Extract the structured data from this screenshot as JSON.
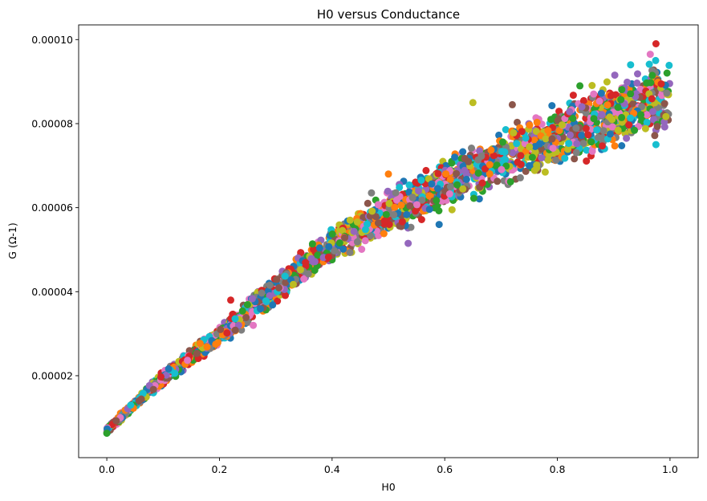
{
  "chart_data": {
    "type": "scatter",
    "title": "H0 versus Conductance",
    "xlabel": "H0",
    "ylabel": "G (Ω-1)",
    "xlim": [
      -0.05,
      1.05
    ],
    "ylim": [
      5e-07,
      0.0001035
    ],
    "x_ticks": [
      0.0,
      0.2,
      0.4,
      0.6,
      0.8,
      1.0
    ],
    "x_tick_labels": [
      "0.0",
      "0.2",
      "0.4",
      "0.6",
      "0.8",
      "1.0"
    ],
    "y_ticks": [
      2e-05,
      4e-05,
      6e-05,
      8e-05,
      0.0001
    ],
    "y_tick_labels": [
      "0.00002",
      "0.00004",
      "0.00006",
      "0.00008",
      "0.00010"
    ],
    "grid": false,
    "legend": "none",
    "series_colors": [
      "#1f77b4",
      "#ff7f0e",
      "#2ca02c",
      "#d62728",
      "#9467bd",
      "#8c564b",
      "#e377c2",
      "#7f7f7f",
      "#bcbd22",
      "#17becf"
    ],
    "trend": {
      "description_points": [
        {
          "x": 0.0,
          "y": 7e-06
        },
        {
          "x": 0.1,
          "y": 1.95e-05
        },
        {
          "x": 0.2,
          "y": 2.95e-05
        },
        {
          "x": 0.3,
          "y": 4.05e-05
        },
        {
          "x": 0.4,
          "y": 5.1e-05
        },
        {
          "x": 0.5,
          "y": 5.85e-05
        },
        {
          "x": 0.6,
          "y": 6.55e-05
        },
        {
          "x": 0.7,
          "y": 7.15e-05
        },
        {
          "x": 0.8,
          "y": 7.75e-05
        },
        {
          "x": 0.9,
          "y": 8.25e-05
        },
        {
          "x": 1.0,
          "y": 8.65e-05
        }
      ],
      "spread_at_x0": 1e-06,
      "spread_at_x1": 1.2e-05
    },
    "sample_points": [
      {
        "x": 0.975,
        "y": 9.9e-05
      },
      {
        "x": 0.965,
        "y": 9.65e-05
      },
      {
        "x": 0.93,
        "y": 9.4e-05
      },
      {
        "x": 0.84,
        "y": 8.9e-05
      },
      {
        "x": 0.72,
        "y": 8.45e-05
      },
      {
        "x": 0.65,
        "y": 8.5e-05
      },
      {
        "x": 0.5,
        "y": 6.8e-05
      },
      {
        "x": 0.535,
        "y": 5.15e-05
      },
      {
        "x": 0.47,
        "y": 6.35e-05
      },
      {
        "x": 0.59,
        "y": 5.6e-05
      },
      {
        "x": 0.22,
        "y": 3.8e-05
      },
      {
        "x": 0.26,
        "y": 3.2e-05
      },
      {
        "x": 0.975,
        "y": 7.5e-05
      },
      {
        "x": 0.0,
        "y": 6.3e-06
      }
    ]
  }
}
